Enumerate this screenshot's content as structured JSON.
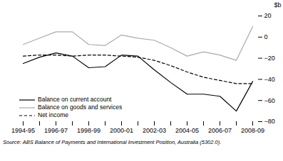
{
  "chart_data": {
    "type": "line",
    "categories": [
      "1994-95",
      null,
      "1996-97",
      null,
      "1998-99",
      null,
      "2000-01",
      null,
      "2002-03",
      null,
      "2004-05",
      null,
      "2006-07",
      null,
      "2008-09"
    ],
    "series": [
      {
        "name": "Balance on current account",
        "color": "#000000",
        "line_style": "solid",
        "values": [
          -25,
          -19,
          -15,
          -18,
          -29,
          -28,
          -17,
          -18,
          -31,
          -43,
          -54,
          -54,
          -56,
          -70,
          -42
        ]
      },
      {
        "name": "Balance on goods and services",
        "color": "#aaaaaa",
        "line_style": "solid",
        "values": [
          -7,
          -1,
          5,
          5,
          -7,
          -8,
          2,
          -1,
          -3,
          -10,
          -18,
          -14,
          -17,
          -22,
          10
        ]
      },
      {
        "name": "Net income",
        "color": "#000000",
        "line_style": "dashed",
        "values": [
          -18,
          -17,
          -17,
          -18,
          -17,
          -17,
          -18,
          -19,
          -22,
          -27,
          -33,
          -38,
          -41,
          -44,
          -44
        ]
      }
    ],
    "ylim": [
      -80,
      20
    ],
    "yticks": [
      20,
      0,
      -20,
      -40,
      -60,
      -80
    ],
    "ylabel": "$b",
    "caption": "Source: ABS Balance of Payments and International Investment Position, Australia (5302.0).",
    "legend": "lower left",
    "grid": false
  }
}
